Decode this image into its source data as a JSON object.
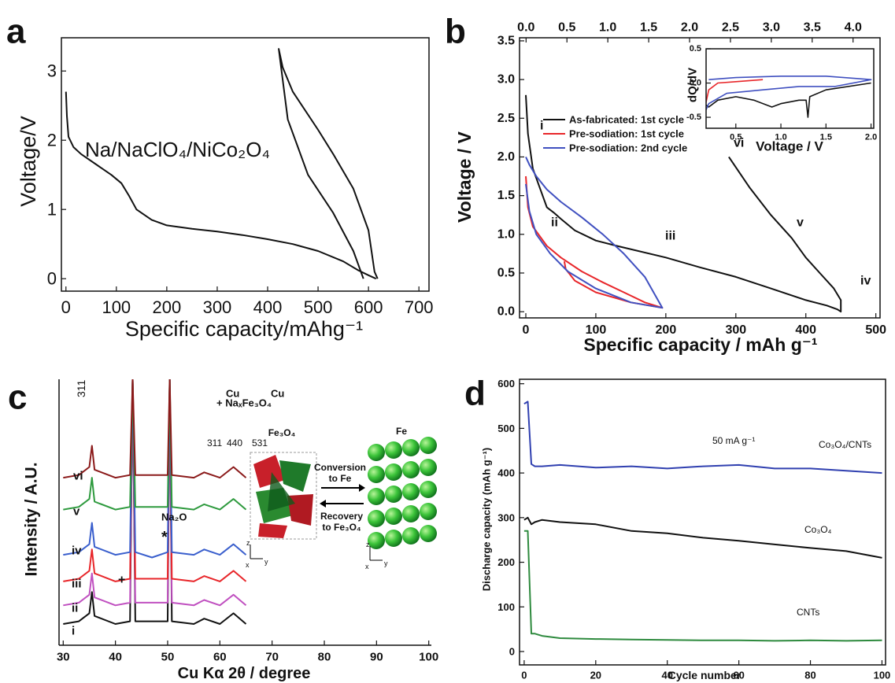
{
  "chart_data": [
    {
      "type": "line",
      "panel": "a",
      "xlabel": "Specific capacity/mAhg⁻¹",
      "ylabel": "Voltage/V",
      "xlim": [
        -9,
        720
      ],
      "ylim": [
        -0.18,
        3.48
      ],
      "xticks": [
        0,
        100,
        200,
        300,
        400,
        500,
        600,
        700
      ],
      "yticks": [
        0,
        1,
        2,
        3
      ],
      "annotations": [
        "Na/NaClO₄/NiCo₂O₄"
      ],
      "series": [
        {
          "color": "#111111",
          "x": [
            0,
            2,
            5,
            15,
            30,
            60,
            90,
            110,
            125,
            140,
            170,
            200,
            250,
            300,
            350,
            400,
            450,
            500,
            550,
            580,
            600,
            615
          ],
          "values": [
            2.7,
            2.35,
            2.05,
            1.9,
            1.8,
            1.65,
            1.5,
            1.38,
            1.2,
            1.0,
            0.85,
            0.77,
            0.72,
            0.68,
            0.63,
            0.57,
            0.5,
            0.4,
            0.25,
            0.12,
            0.05,
            0.0
          ]
        },
        {
          "color": "#111111",
          "x": [
            618,
            612,
            600,
            570,
            530,
            500,
            450,
            430,
            422,
            440,
            480,
            530,
            570,
            590
          ],
          "values": [
            0.0,
            0.1,
            0.7,
            1.3,
            1.8,
            2.15,
            2.7,
            3.05,
            3.32,
            2.3,
            1.5,
            0.95,
            0.4,
            0.0
          ]
        }
      ]
    },
    {
      "type": "line",
      "panel": "b",
      "xlabel": "Specific capacity  /  mAh g⁻¹",
      "ylabel": "Voltage  /  V",
      "xlim": [
        -9,
        506
      ],
      "ylim": [
        -0.08,
        3.54
      ],
      "x2lim": [
        -0.08,
        4.33
      ],
      "xticks": [
        0,
        100,
        200,
        300,
        400,
        500
      ],
      "yticks": [
        {
          "value": 0,
          "label": "0.0"
        },
        0.5,
        {
          "value": 1,
          "label": "1.0"
        },
        1.5,
        {
          "value": 2,
          "label": "2.0"
        },
        2.5,
        {
          "value": 3,
          "label": "3.0"
        },
        3.5
      ],
      "x2ticks": [
        {
          "value": 0,
          "label": "0.0"
        },
        0.5,
        {
          "value": 1,
          "label": "1.0"
        },
        1.5,
        {
          "value": 2,
          "label": "2.0"
        },
        2.5,
        {
          "value": 3,
          "label": "3.0"
        },
        3.5,
        {
          "value": 4,
          "label": "4.0"
        }
      ],
      "annotations": [
        "i",
        "ii",
        "iii",
        "iv",
        "v",
        "vi"
      ],
      "series": [
        {
          "name": "As-fabricated: 1st cycle",
          "color": "#111111",
          "x": [
            0,
            3,
            10,
            20,
            30,
            40,
            50,
            70,
            100,
            130,
            200,
            250,
            300,
            350,
            400,
            430,
            445,
            450,
            450,
            440,
            420,
            400,
            380,
            350,
            320,
            290
          ],
          "values": [
            2.8,
            2.3,
            1.85,
            1.6,
            1.35,
            1.28,
            1.2,
            1.05,
            0.92,
            0.85,
            0.7,
            0.57,
            0.45,
            0.3,
            0.15,
            0.08,
            0.03,
            0.0,
            0.15,
            0.3,
            0.5,
            0.7,
            0.95,
            1.25,
            1.6,
            2.0
          ]
        },
        {
          "name": "Pre-sodiation: 1st cycle",
          "color": "#e8262a",
          "x": [
            0,
            3,
            10,
            30,
            50,
            80,
            110,
            140,
            170,
            195,
            150,
            100,
            70,
            57,
            55
          ],
          "values": [
            1.75,
            1.35,
            1.1,
            0.85,
            0.7,
            0.52,
            0.38,
            0.25,
            0.12,
            0.05,
            0.12,
            0.25,
            0.4,
            0.55,
            0.65
          ]
        },
        {
          "name": "Pre-sodiation: 2nd cycle",
          "color": "#4050c0",
          "x": [
            0,
            5,
            15,
            35,
            60,
            100,
            150,
            195,
            170,
            140,
            110,
            80,
            50,
            30,
            15,
            5,
            0
          ],
          "values": [
            1.65,
            1.3,
            1.0,
            0.75,
            0.52,
            0.3,
            0.12,
            0.05,
            0.45,
            0.75,
            1.0,
            1.22,
            1.42,
            1.58,
            1.75,
            1.9,
            2.0
          ]
        }
      ]
    },
    {
      "type": "line",
      "xlabel": "Voltage  /  V",
      "ylabel": "dQ/dV",
      "xlim": [
        0.17,
        2.03
      ],
      "ylim": [
        -0.66,
        0.5
      ],
      "xticks": [
        0.5,
        {
          "value": 1,
          "label": "1.0"
        },
        1.5,
        {
          "value": 2,
          "label": "2.0"
        }
      ],
      "yticks": [
        -0.5,
        {
          "value": 0,
          "label": "0.0"
        },
        0.5
      ],
      "series": [
        {
          "color": "#111111",
          "x": [
            0.1,
            0.12,
            0.15,
            0.2,
            0.3,
            0.5,
            0.7,
            0.9,
            1.0,
            1.2,
            1.28,
            1.3,
            1.32,
            1.5,
            2.0
          ],
          "values": [
            -0.8,
            -0.4,
            -0.3,
            -0.35,
            -0.25,
            -0.2,
            -0.25,
            -0.35,
            -0.3,
            -0.25,
            -0.25,
            -0.5,
            -0.2,
            -0.1,
            0.0
          ]
        },
        {
          "color": "#e8262a",
          "x": [
            0.1,
            0.15,
            0.2,
            0.3,
            0.5,
            0.8
          ],
          "values": [
            -0.7,
            -0.4,
            -0.1,
            0.0,
            0.02,
            0.05
          ]
        },
        {
          "color": "#4050c0",
          "x": [
            0.1,
            0.15,
            0.2,
            0.4,
            0.8,
            1.2,
            1.6,
            2.0,
            1.5,
            1.0,
            0.5,
            0.2
          ],
          "values": [
            -0.8,
            -0.45,
            -0.3,
            -0.15,
            -0.1,
            -0.05,
            -0.05,
            0.05,
            0.1,
            0.1,
            0.08,
            0.05
          ]
        }
      ]
    },
    {
      "type": "line",
      "panel": "c",
      "xlabel": "Cu Kα 2θ  /  degree",
      "ylabel": "Intensity  /  A.U.",
      "xlim": [
        29.2,
        100.5
      ],
      "ylim": [
        0,
        100
      ],
      "xticks": [
        30,
        40,
        50,
        60,
        70,
        80,
        90,
        100
      ],
      "annotations": [
        "311",
        "Cu",
        "Cu",
        "+ NaₓFe₃O₄",
        "311",
        "440",
        "531",
        "Na₂O",
        "*",
        "+",
        "vi",
        "v",
        "iv",
        "iii",
        "ii",
        "i"
      ],
      "diagram": {
        "left": "Fe₃O₄",
        "right": "Fe",
        "forward": [
          "Conversion",
          "to Fe"
        ],
        "backward": [
          "Recovery",
          "to Fe₃O₄"
        ],
        "axes": [
          "z",
          "x",
          "y"
        ]
      },
      "series": [
        {
          "color": "#111111",
          "x": [
            30,
            33,
            35,
            35.5,
            36,
            40,
            42.8,
            43.3,
            43.8,
            47,
            50,
            50.4,
            50.8,
            55,
            57,
            60,
            62.6,
            65
          ],
          "values": [
            8,
            9,
            12,
            20,
            11,
            8,
            9,
            100,
            9,
            9,
            9,
            100,
            9,
            8,
            10,
            8,
            12,
            8
          ]
        },
        {
          "color": "#c050c0",
          "x": [
            30,
            33,
            35,
            35.5,
            36,
            40,
            42.8,
            43.3,
            43.8,
            47,
            50,
            50.4,
            50.8,
            55,
            57,
            60,
            62.6,
            65
          ],
          "values": [
            15,
            16,
            19,
            27,
            18,
            15,
            16,
            100,
            16,
            16,
            16,
            100,
            16,
            15,
            17,
            15,
            19,
            15
          ]
        },
        {
          "color": "#e8262a",
          "x": [
            30,
            33,
            35,
            35.5,
            36,
            40,
            42.8,
            43.3,
            43.8,
            47,
            50,
            50.4,
            50.8,
            55,
            57,
            60,
            62.6,
            65
          ],
          "values": [
            24,
            25,
            28,
            36,
            27,
            24,
            25,
            100,
            25,
            25,
            25,
            100,
            25,
            24,
            26,
            24,
            28,
            24
          ]
        },
        {
          "color": "#3a5fcd",
          "x": [
            30,
            33,
            35,
            35.5,
            36,
            40,
            42.8,
            43.3,
            43.8,
            47,
            50,
            50.4,
            50.8,
            55,
            57,
            60,
            62.6,
            65
          ],
          "values": [
            34,
            35,
            38,
            46,
            37,
            34,
            35,
            100,
            35,
            33,
            35,
            100,
            35,
            34,
            36,
            34,
            38,
            34
          ]
        },
        {
          "color": "#2e9a3e",
          "x": [
            30,
            33,
            35,
            35.5,
            36,
            40,
            42.8,
            43.3,
            43.8,
            47,
            50,
            50.4,
            50.8,
            55,
            57,
            60,
            62.6,
            65
          ],
          "values": [
            51,
            52,
            55,
            63,
            54,
            51,
            52,
            100,
            52,
            52,
            52,
            100,
            52,
            51,
            53,
            51,
            55,
            51
          ]
        },
        {
          "color": "#8b1a1a",
          "x": [
            30,
            33,
            35,
            35.5,
            36,
            40,
            42.8,
            43.3,
            43.8,
            47,
            50,
            50.4,
            50.8,
            55,
            57,
            60,
            62.6,
            65
          ],
          "values": [
            63,
            64,
            67,
            75,
            66,
            63,
            64,
            100,
            64,
            64,
            64,
            100,
            64,
            63,
            65,
            63,
            67,
            63
          ]
        }
      ]
    },
    {
      "type": "line",
      "panel": "d",
      "xlabel": "Cycle number",
      "ylabel": "Discharge capacity (mAh g⁻¹)",
      "xlim": [
        -1.3,
        101
      ],
      "ylim": [
        -30,
        610
      ],
      "xticks": [
        0,
        20,
        40,
        60,
        80,
        100
      ],
      "yticks": [
        0,
        100,
        200,
        300,
        400,
        500,
        600
      ],
      "annotations": [
        "50 mA g⁻¹",
        "Co₃O₄/CNTs",
        "Co₃O₄",
        "CNTs"
      ],
      "series": [
        {
          "color": "#3040b0",
          "x": [
            0,
            1,
            2,
            3,
            5,
            10,
            20,
            30,
            40,
            50,
            60,
            70,
            80,
            90,
            100
          ],
          "values": [
            555,
            560,
            420,
            415,
            415,
            418,
            412,
            415,
            410,
            415,
            418,
            410,
            410,
            405,
            400
          ]
        },
        {
          "color": "#111111",
          "x": [
            0,
            1,
            2,
            3,
            5,
            10,
            20,
            30,
            40,
            50,
            60,
            70,
            80,
            90,
            100
          ],
          "values": [
            295,
            300,
            285,
            290,
            295,
            290,
            285,
            270,
            265,
            255,
            248,
            240,
            232,
            225,
            210
          ]
        },
        {
          "color": "#2e8a3e",
          "x": [
            0,
            1,
            2,
            3,
            5,
            10,
            20,
            30,
            40,
            50,
            60,
            70,
            80,
            90,
            100
          ],
          "values": [
            270,
            270,
            40,
            40,
            35,
            30,
            28,
            27,
            26,
            25,
            25,
            24,
            25,
            24,
            25
          ]
        }
      ]
    }
  ]
}
